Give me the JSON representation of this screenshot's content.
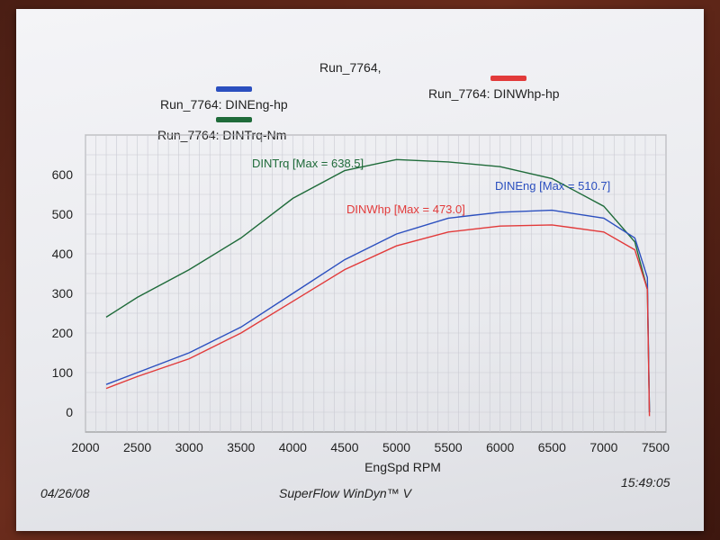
{
  "header": {
    "run_title": "Run_7764,",
    "legend": [
      {
        "label": "Run_7764: DINEng-hp",
        "color": "#2b4fbf"
      },
      {
        "label": "Run_7764: DINTrq-Nm",
        "color": "#1f6b3a"
      },
      {
        "label": "Run_7764: DINWhp-hp",
        "color": "#e23a3a"
      }
    ]
  },
  "footer": {
    "date": "04/26/08",
    "time": "15:49:05",
    "software": "SuperFlow WinDyn™ V"
  },
  "chart_data": {
    "type": "line",
    "title": "Run_7764,",
    "xlabel": "EngSpd  RPM",
    "ylabel": "",
    "xlim": [
      2000,
      7600
    ],
    "ylim": [
      -50,
      700
    ],
    "xticks": [
      2000,
      2500,
      3000,
      3500,
      4000,
      4500,
      5000,
      5500,
      6000,
      6500,
      7000,
      7500
    ],
    "yticks": [
      0,
      100,
      200,
      300,
      400,
      500,
      600
    ],
    "grid": true,
    "annotations": [
      {
        "text": "DINTrq [Max = 638.5]",
        "series": "Run_7764: DINTrq-Nm"
      },
      {
        "text": "DINEng [Max = 510.7]",
        "series": "Run_7764: DINEng-hp"
      },
      {
        "text": "DINWhp [Max = 473.0]",
        "series": "Run_7764: DINWhp-hp"
      }
    ],
    "series": [
      {
        "name": "Run_7764: DINTrq-Nm",
        "color": "#1f6b3a",
        "x": [
          2200,
          2500,
          3000,
          3500,
          4000,
          4500,
          5000,
          5500,
          6000,
          6500,
          7000,
          7300,
          7420,
          7440
        ],
        "y": [
          240,
          290,
          360,
          440,
          540,
          610,
          638,
          632,
          620,
          590,
          520,
          430,
          310,
          0
        ]
      },
      {
        "name": "Run_7764: DINEng-hp",
        "color": "#2b4fbf",
        "x": [
          2200,
          2500,
          3000,
          3500,
          4000,
          4500,
          5000,
          5500,
          6000,
          6500,
          7000,
          7300,
          7420,
          7440
        ],
        "y": [
          70,
          100,
          150,
          215,
          300,
          385,
          450,
          490,
          505,
          510,
          490,
          440,
          340,
          0
        ]
      },
      {
        "name": "Run_7764: DINWhp-hp",
        "color": "#e23a3a",
        "x": [
          2200,
          2500,
          3000,
          3500,
          4000,
          4500,
          5000,
          5500,
          6000,
          6500,
          7000,
          7300,
          7420,
          7440
        ],
        "y": [
          60,
          90,
          135,
          200,
          280,
          360,
          420,
          455,
          470,
          473,
          455,
          410,
          310,
          -10
        ]
      }
    ]
  }
}
